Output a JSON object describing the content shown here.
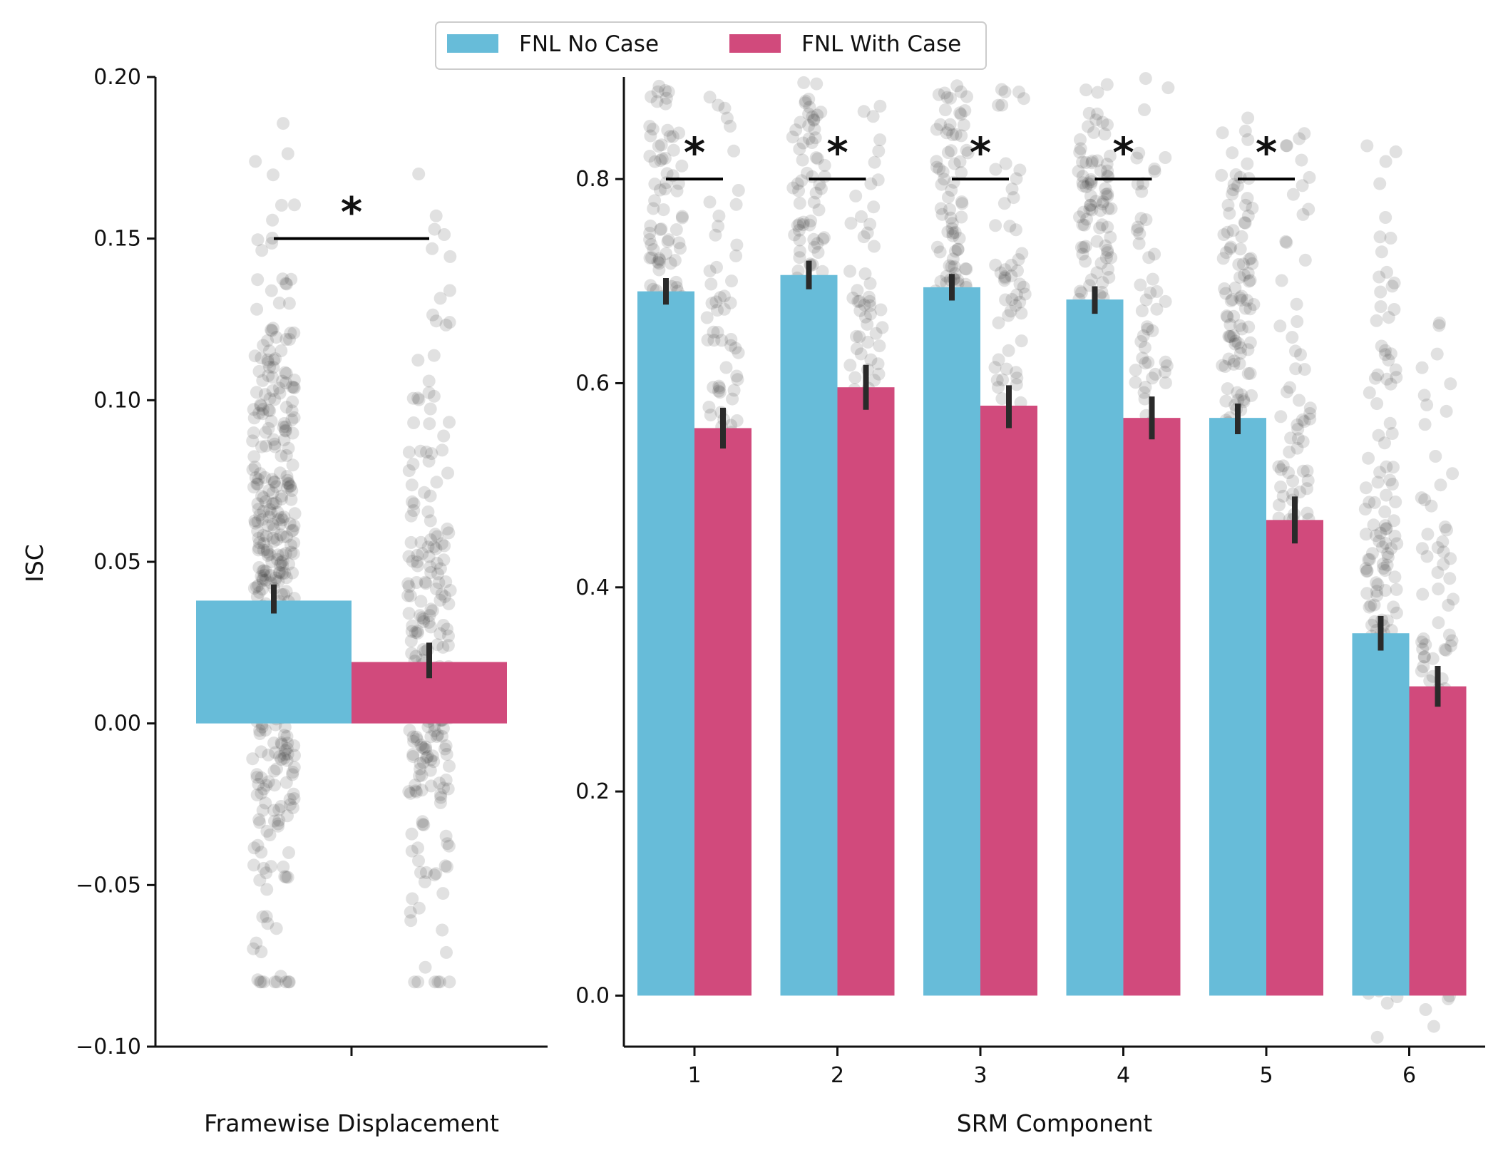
{
  "legend": {
    "items": [
      {
        "label": "FNL No Case",
        "color": "#67bcd9"
      },
      {
        "label": "FNL With Case",
        "color": "#d14a7c"
      }
    ]
  },
  "chart_data": [
    {
      "type": "bar",
      "categories": [
        ""
      ],
      "xlabel": "Framewise Displacement",
      "ylabel": "ISC",
      "ylim": [
        -0.1,
        0.2
      ],
      "yticks": [
        -0.1,
        -0.05,
        0.0,
        0.05,
        0.1,
        0.15,
        0.2
      ],
      "ytick_labels": [
        "−0.10",
        "−0.05",
        "0.00",
        "0.05",
        "0.10",
        "0.15",
        "0.20"
      ],
      "series": [
        {
          "name": "FNL No Case",
          "values": [
            0.038
          ],
          "ci": [
            [
              0.034,
              0.043
            ]
          ]
        },
        {
          "name": "FNL With Case",
          "values": [
            0.019
          ],
          "ci": [
            [
              0.014,
              0.025
            ]
          ]
        }
      ],
      "significance": [
        {
          "category_index": 0,
          "label": "*",
          "y": 0.15
        }
      ],
      "strip": {
        "FNL No Case": {
          "approx_count": 400,
          "range": [
            -0.08,
            0.186
          ]
        },
        "FNL With Case": {
          "approx_count": 230,
          "range": [
            -0.08,
            0.17
          ]
        }
      },
      "grid": false
    },
    {
      "type": "bar",
      "categories": [
        "1",
        "2",
        "3",
        "4",
        "5",
        "6"
      ],
      "xlabel": "SRM Component",
      "ylabel": "",
      "ylim": [
        -0.05,
        0.9
      ],
      "yticks": [
        0.0,
        0.2,
        0.4,
        0.6,
        0.8
      ],
      "ytick_labels": [
        "0.0",
        "0.2",
        "0.4",
        "0.6",
        "0.8"
      ],
      "series": [
        {
          "name": "FNL No Case",
          "values": [
            0.69,
            0.706,
            0.694,
            0.682,
            0.566,
            0.355
          ],
          "ci": [
            [
              0.677,
              0.703
            ],
            [
              0.692,
              0.72
            ],
            [
              0.681,
              0.707
            ],
            [
              0.668,
              0.695
            ],
            [
              0.55,
              0.58
            ],
            [
              0.338,
              0.372
            ]
          ]
        },
        {
          "name": "FNL With Case",
          "values": [
            0.556,
            0.596,
            0.578,
            0.566,
            0.466,
            0.303
          ],
          "ci": [
            [
              0.536,
              0.576
            ],
            [
              0.574,
              0.618
            ],
            [
              0.556,
              0.598
            ],
            [
              0.545,
              0.587
            ],
            [
              0.443,
              0.489
            ],
            [
              0.283,
              0.323
            ]
          ]
        }
      ],
      "significance": [
        {
          "category_index": 0,
          "label": "*",
          "y": 0.8
        },
        {
          "category_index": 1,
          "label": "*",
          "y": 0.8
        },
        {
          "category_index": 2,
          "label": "*",
          "y": 0.8
        },
        {
          "category_index": 3,
          "label": "*",
          "y": 0.8
        },
        {
          "category_index": 4,
          "label": "*",
          "y": 0.8
        }
      ],
      "strip": {
        "FNL No Case": {
          "approx_count": 400,
          "ranges": [
            [
              0.12,
              0.9
            ],
            [
              0.16,
              0.9
            ],
            [
              0.24,
              0.9
            ],
            [
              0.15,
              0.9
            ],
            [
              -0.01,
              0.86
            ],
            [
              -0.05,
              0.86
            ]
          ]
        },
        "FNL With Case": {
          "approx_count": 230,
          "ranges": [
            [
              0.08,
              0.89
            ],
            [
              0.15,
              0.89
            ],
            [
              0.06,
              0.89
            ],
            [
              0.09,
              0.9
            ],
            [
              0.02,
              0.85
            ],
            [
              -0.04,
              0.69
            ]
          ]
        }
      },
      "grid": false
    }
  ]
}
